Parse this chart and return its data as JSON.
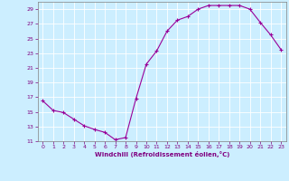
{
  "x": [
    0,
    1,
    2,
    3,
    4,
    5,
    6,
    7,
    8,
    9,
    10,
    11,
    12,
    13,
    14,
    15,
    16,
    17,
    18,
    19,
    20,
    21,
    22,
    23
  ],
  "y": [
    16.5,
    15.2,
    14.9,
    14.0,
    13.1,
    12.6,
    12.2,
    11.2,
    11.5,
    16.8,
    21.5,
    23.3,
    26.0,
    27.5,
    28.0,
    29.0,
    29.5,
    29.5,
    29.5,
    29.5,
    29.0,
    27.2,
    25.5,
    23.5
  ],
  "line_color": "#990099",
  "marker": "+",
  "bg_color": "#cceeff",
  "grid_color": "#ffffff",
  "xlabel": "Windchill (Refroidissement éolien,°C)",
  "xlabel_color": "#800080",
  "tick_color": "#800080",
  "spine_color": "#808080",
  "ylim": [
    11,
    30
  ],
  "xlim": [
    -0.5,
    23.5
  ],
  "yticks": [
    11,
    13,
    15,
    17,
    19,
    21,
    23,
    25,
    27,
    29
  ],
  "xticks": [
    0,
    1,
    2,
    3,
    4,
    5,
    6,
    7,
    8,
    9,
    10,
    11,
    12,
    13,
    14,
    15,
    16,
    17,
    18,
    19,
    20,
    21,
    22,
    23
  ],
  "figsize": [
    3.2,
    2.0
  ],
  "dpi": 100
}
